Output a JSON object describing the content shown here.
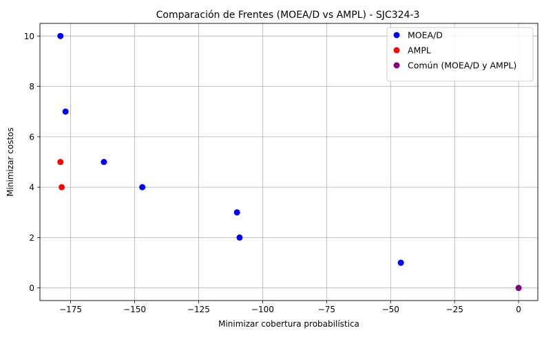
{
  "chart_data": {
    "type": "scatter",
    "title": "Comparación de Frentes (MOEA/D vs AMPL) - SJC324-3",
    "xlabel": "Minimizar cobertura probabilística",
    "ylabel": "Minimizar costos",
    "xlim": [
      -187,
      7.5
    ],
    "ylim": [
      -0.5,
      10.5
    ],
    "xticks": [
      -175,
      -150,
      -125,
      -100,
      -75,
      -50,
      -25,
      0
    ],
    "xtick_labels": [
      "−175",
      "−150",
      "−125",
      "−100",
      "−75",
      "−50",
      "−25",
      "0"
    ],
    "yticks": [
      0,
      2,
      4,
      6,
      8,
      10
    ],
    "ytick_labels": [
      "0",
      "2",
      "4",
      "6",
      "8",
      "10"
    ],
    "grid": true,
    "legend_position": "top-right",
    "series": [
      {
        "name": "MOEA/D",
        "color": "#0000ff",
        "points": [
          [
            -179,
            10
          ],
          [
            -177,
            7
          ],
          [
            -162,
            5
          ],
          [
            -147,
            4
          ],
          [
            -110,
            3
          ],
          [
            -109,
            2
          ],
          [
            -46,
            1
          ]
        ]
      },
      {
        "name": "AMPL",
        "color": "#ff0000",
        "points": [
          [
            -179,
            5
          ],
          [
            -178.5,
            4
          ]
        ]
      },
      {
        "name": "Común (MOEA/D y AMPL)",
        "color": "#800080",
        "points": [
          [
            0,
            0
          ]
        ]
      }
    ]
  }
}
